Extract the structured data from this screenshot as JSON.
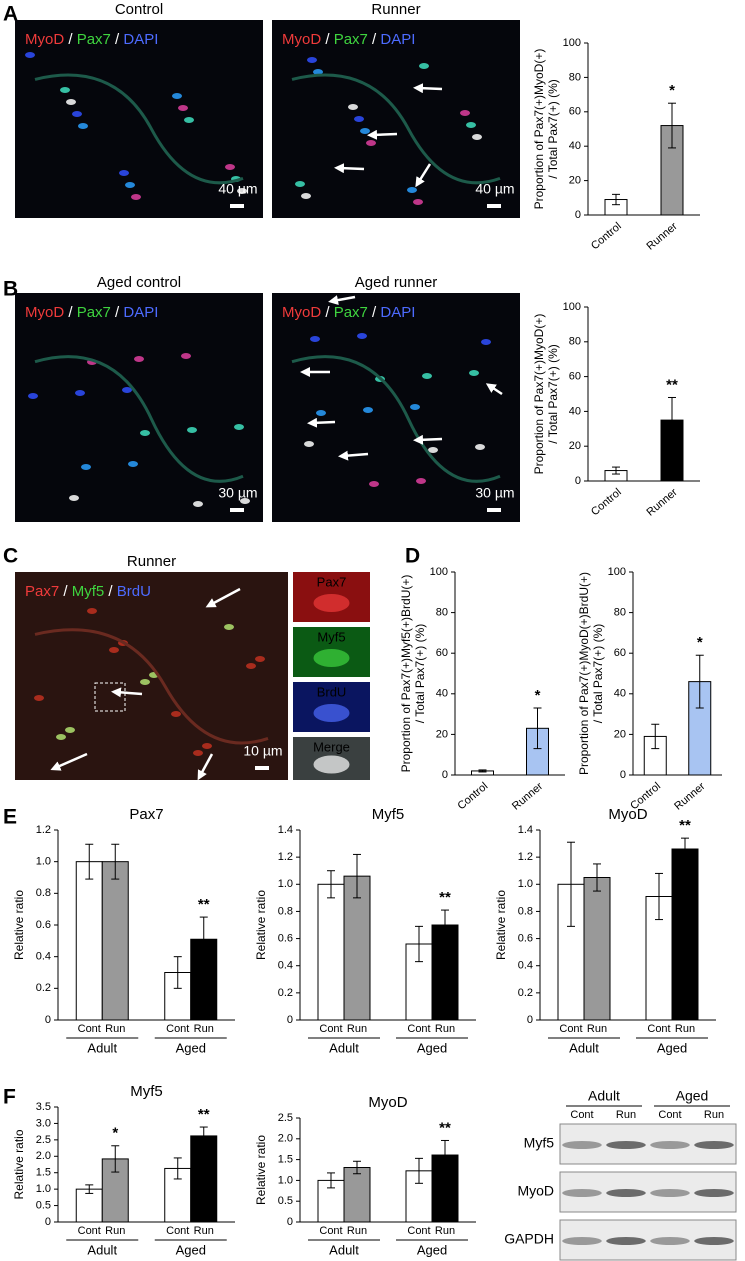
{
  "panels": {
    "letters": [
      "A",
      "B",
      "C",
      "D",
      "E",
      "F"
    ],
    "images": [
      {
        "title": "Control",
        "stain": [
          {
            "text": "MyoD",
            "color": "#ef3b3b"
          },
          {
            "text": " / ",
            "color": "#ffffff"
          },
          {
            "text": "Pax7",
            "color": "#3fd43f"
          },
          {
            "text": " / ",
            "color": "#ffffff"
          },
          {
            "text": "DAPI",
            "color": "#4d6bff"
          }
        ],
        "scale": "40 µm"
      },
      {
        "title": "Runner",
        "stain": [
          {
            "text": "MyoD",
            "color": "#ef3b3b"
          },
          {
            "text": " / ",
            "color": "#ffffff"
          },
          {
            "text": "Pax7",
            "color": "#3fd43f"
          },
          {
            "text": " / ",
            "color": "#ffffff"
          },
          {
            "text": "DAPI",
            "color": "#4d6bff"
          }
        ],
        "scale": "40 µm"
      },
      {
        "title": "Aged control",
        "stain": [
          {
            "text": "MyoD",
            "color": "#ef3b3b"
          },
          {
            "text": " / ",
            "color": "#ffffff"
          },
          {
            "text": "Pax7",
            "color": "#3fd43f"
          },
          {
            "text": " / ",
            "color": "#ffffff"
          },
          {
            "text": "DAPI",
            "color": "#4d6bff"
          }
        ],
        "scale": "30 µm"
      },
      {
        "title": "Aged runner",
        "stain": [
          {
            "text": "MyoD",
            "color": "#ef3b3b"
          },
          {
            "text": " / ",
            "color": "#ffffff"
          },
          {
            "text": "Pax7",
            "color": "#3fd43f"
          },
          {
            "text": " / ",
            "color": "#ffffff"
          },
          {
            "text": "DAPI",
            "color": "#4d6bff"
          }
        ],
        "scale": "30 µm"
      },
      {
        "title": "Runner",
        "stain": [
          {
            "text": "Pax7",
            "color": "#ef3b3b"
          },
          {
            "text": " / ",
            "color": "#ffffff"
          },
          {
            "text": "Myf5",
            "color": "#3fd43f"
          },
          {
            "text": " / ",
            "color": "#ffffff"
          },
          {
            "text": "BrdU",
            "color": "#4d6bff"
          }
        ],
        "scale": "10 µm"
      }
    ],
    "insets": [
      {
        "text": "Pax7",
        "color": "#ef3b3b"
      },
      {
        "text": "Myf5",
        "color": "#3fd43f"
      },
      {
        "text": "BrdU",
        "color": "#4d6bff"
      },
      {
        "text": "Merge",
        "color": "#ffffff"
      }
    ]
  },
  "blot": {
    "groups": [
      "Adult",
      "Aged"
    ],
    "lanes": [
      "Cont",
      "Run",
      "Cont",
      "Run"
    ],
    "bands": [
      "Myf5",
      "MyoD",
      "GAPDH"
    ]
  },
  "chart_data": [
    {
      "type": "bar",
      "ylabel": [
        "Proportion of Pax7(+)MyoD(+)",
        "/ Total Pax7(+) (%)"
      ],
      "categories": [
        "Control",
        "Runner"
      ],
      "values": [
        9,
        52
      ],
      "errors": [
        3,
        13
      ],
      "colors": [
        "#ffffff",
        "#999999"
      ],
      "significance": [
        null,
        "*"
      ],
      "ylim": [
        0,
        100
      ],
      "yticks": [
        0,
        20,
        40,
        60,
        80,
        100
      ]
    },
    {
      "type": "bar",
      "ylabel": [
        "Proportion of Pax7(+)MyoD(+)",
        "/ Total Pax7(+) (%)"
      ],
      "categories": [
        "Control",
        "Runner"
      ],
      "values": [
        6,
        35
      ],
      "errors": [
        2,
        13
      ],
      "colors": [
        "#ffffff",
        "#000000"
      ],
      "significance": [
        null,
        "**"
      ],
      "ylim": [
        0,
        100
      ],
      "yticks": [
        0,
        20,
        40,
        60,
        80,
        100
      ]
    },
    {
      "type": "bar",
      "ylabel": [
        "Proportion of Pax7(+)Myf5(+)BrdU(+)",
        "/ Total Pax7(+) (%)"
      ],
      "categories": [
        "Control",
        "Runner"
      ],
      "values": [
        2,
        23
      ],
      "errors": [
        0.5,
        10
      ],
      "colors": [
        "#ffffff",
        "#a8c4f2"
      ],
      "significance": [
        null,
        "*"
      ],
      "ylim": [
        0,
        100
      ],
      "yticks": [
        0,
        20,
        40,
        60,
        80,
        100
      ]
    },
    {
      "type": "bar",
      "ylabel": [
        "Proportion of Pax7(+)MyoD(+)BrdU(+)",
        "/ Total Pax7(+) (%)"
      ],
      "categories": [
        "Control",
        "Runner"
      ],
      "values": [
        19,
        46
      ],
      "errors": [
        6,
        13
      ],
      "colors": [
        "#ffffff",
        "#a8c4f2"
      ],
      "significance": [
        null,
        "*"
      ],
      "ylim": [
        0,
        100
      ],
      "yticks": [
        0,
        20,
        40,
        60,
        80,
        100
      ]
    },
    {
      "type": "bar",
      "title": "Pax7",
      "ylabel": [
        "Relative ratio"
      ],
      "categories": [
        "Adult",
        "Aged"
      ],
      "series": [
        {
          "name": "Cont",
          "colors": [
            "#ffffff",
            "#ffffff"
          ],
          "values": [
            1.0,
            0.3
          ],
          "errors": [
            0.11,
            0.1
          ],
          "significance": [
            null,
            null
          ]
        },
        {
          "name": "Run",
          "colors": [
            "#999999",
            "#000000"
          ],
          "values": [
            1.0,
            0.51
          ],
          "errors": [
            0.11,
            0.14
          ],
          "significance": [
            null,
            "**"
          ]
        }
      ],
      "ylim": [
        0,
        1.2
      ],
      "yticks": [
        0,
        0.2,
        0.4,
        0.6,
        0.8,
        {
          "value": 1,
          "label": "1.0"
        },
        1.2
      ]
    },
    {
      "type": "bar",
      "title": "Myf5",
      "ylabel": [
        "Relative ratio"
      ],
      "categories": [
        "Adult",
        "Aged"
      ],
      "series": [
        {
          "name": "Cont",
          "colors": [
            "#ffffff",
            "#ffffff"
          ],
          "values": [
            1.0,
            0.56
          ],
          "errors": [
            0.1,
            0.13
          ],
          "significance": [
            null,
            null
          ]
        },
        {
          "name": "Run",
          "colors": [
            "#999999",
            "#000000"
          ],
          "values": [
            1.06,
            0.7
          ],
          "errors": [
            0.16,
            0.11
          ],
          "significance": [
            null,
            "**"
          ]
        }
      ],
      "ylim": [
        0,
        1.4
      ],
      "yticks": [
        0,
        0.2,
        0.4,
        0.6,
        0.8,
        {
          "value": 1,
          "label": "1.0"
        },
        1.2,
        1.4
      ]
    },
    {
      "type": "bar",
      "title": "MyoD",
      "ylabel": [
        "Relative ratio"
      ],
      "categories": [
        "Adult",
        "Aged"
      ],
      "series": [
        {
          "name": "Cont",
          "colors": [
            "#ffffff",
            "#ffffff"
          ],
          "values": [
            1.0,
            0.91
          ],
          "errors": [
            0.31,
            0.17
          ],
          "significance": [
            null,
            null
          ]
        },
        {
          "name": "Run",
          "colors": [
            "#999999",
            "#000000"
          ],
          "values": [
            1.05,
            1.26
          ],
          "errors": [
            0.1,
            0.08
          ],
          "significance": [
            null,
            "**"
          ]
        }
      ],
      "ylim": [
        0,
        1.4
      ],
      "yticks": [
        0,
        0.2,
        0.4,
        0.6,
        0.8,
        {
          "value": 1,
          "label": "1.0"
        },
        1.2,
        1.4
      ]
    },
    {
      "type": "bar",
      "title": "Myf5",
      "ylabel": [
        "Relative ratio"
      ],
      "categories": [
        "Adult",
        "Aged"
      ],
      "series": [
        {
          "name": "Cont",
          "colors": [
            "#ffffff",
            "#ffffff"
          ],
          "values": [
            1.0,
            1.63
          ],
          "errors": [
            0.13,
            0.32
          ],
          "significance": [
            null,
            null
          ]
        },
        {
          "name": "Run",
          "colors": [
            "#999999",
            "#000000"
          ],
          "values": [
            1.92,
            2.62
          ],
          "errors": [
            0.4,
            0.27
          ],
          "significance": [
            "*",
            "**"
          ]
        }
      ],
      "ylim": [
        0,
        3.5
      ],
      "yticks": [
        0,
        0.5,
        {
          "value": 1,
          "label": "1.0"
        },
        1.5,
        {
          "value": 2,
          "label": "2.0"
        },
        2.5,
        {
          "value": 3,
          "label": "3.0"
        },
        3.5
      ]
    },
    {
      "type": "bar",
      "title": "MyoD",
      "ylabel": [
        "Relative ratio"
      ],
      "categories": [
        "Adult",
        "Aged"
      ],
      "series": [
        {
          "name": "Cont",
          "colors": [
            "#ffffff",
            "#ffffff"
          ],
          "values": [
            1.0,
            1.23
          ],
          "errors": [
            0.18,
            0.3
          ],
          "significance": [
            null,
            null
          ]
        },
        {
          "name": "Run",
          "colors": [
            "#999999",
            "#000000"
          ],
          "values": [
            1.31,
            1.61
          ],
          "errors": [
            0.15,
            0.35
          ],
          "significance": [
            null,
            "**"
          ]
        }
      ],
      "ylim": [
        0,
        2.5
      ],
      "yticks": [
        0,
        0.5,
        {
          "value": 1,
          "label": "1.0"
        },
        1.5,
        {
          "value": 2,
          "label": "2.0"
        },
        2.5
      ]
    }
  ]
}
